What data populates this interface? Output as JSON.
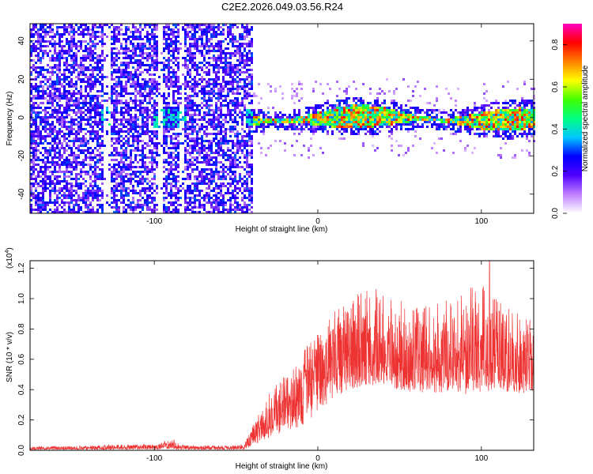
{
  "figure": {
    "title": "C2E2.2026.049.03.56.R24"
  },
  "chart_data": [
    {
      "type": "heatmap",
      "name": "spectrogram",
      "xlabel": "Height of straight line (km)",
      "ylabel": "Frequency (Hz)",
      "xlim": [
        -176,
        132
      ],
      "ylim": [
        -50,
        49
      ],
      "xticks": [
        -100,
        0,
        100
      ],
      "yticks": [
        -40,
        -20,
        0,
        20,
        40
      ],
      "colorbar": {
        "label": "Normalized spectral amplitude",
        "range": [
          0,
          0.9
        ],
        "ticks": [
          0.0,
          0.2,
          0.4,
          0.6,
          0.8
        ],
        "colormap": [
          "#ffffff",
          "#c080ff",
          "#5000ff",
          "#0000ff",
          "#00c8ff",
          "#00ff80",
          "#40ff00",
          "#ffff00",
          "#ff8000",
          "#ff0000",
          "#ff00c0"
        ]
      },
      "regions": [
        {
          "x_range": [
            -176,
            -41
          ],
          "description_freq_band": [
            -50,
            49
          ],
          "intensity": 0.05
        },
        {
          "x_range": [
            -133,
            -128
          ],
          "description_freq_band": [
            -4,
            6
          ],
          "intensity": 0.25
        },
        {
          "x_range": [
            -101,
            -81
          ],
          "description_freq_band": [
            -5,
            5
          ],
          "intensity": 0.3
        },
        {
          "x_range": [
            -45,
            132
          ],
          "description_freq_band": [
            -4,
            5
          ],
          "intensity": 0.6
        }
      ],
      "gaps_x": [
        [
          -132,
          -128
        ],
        [
          -99,
          -95
        ],
        [
          -85,
          -82
        ]
      ]
    },
    {
      "type": "line",
      "name": "snr",
      "xlabel": "Height of straight line (km)",
      "ylabel": "SNR (10 * v/v)",
      "y_multiplier": "(x10",
      "y_multiplier_exp": "4",
      "y_multiplier_close": ")",
      "xlim": [
        -176,
        132
      ],
      "ylim": [
        0,
        1.25
      ],
      "xticks": [
        -100,
        0,
        100
      ],
      "yticks": [
        0.0,
        0.2,
        0.4,
        0.6,
        0.8,
        1.0,
        1.2
      ],
      "ytick_labels": [
        "0.0",
        "0.2",
        "0.4",
        "0.6",
        "0.8",
        "1.0",
        "1.2"
      ],
      "color": "#ee3333",
      "envelope": {
        "x": [
          -176,
          -140,
          -130,
          -100,
          -88,
          -85,
          -60,
          -45,
          -38,
          -30,
          -20,
          -10,
          0,
          10,
          20,
          30,
          40,
          50,
          60,
          70,
          80,
          90,
          100,
          110,
          120,
          132
        ],
        "baseline": [
          0.003,
          0.004,
          0.005,
          0.006,
          0.008,
          0.005,
          0.004,
          0.005,
          0.04,
          0.08,
          0.12,
          0.16,
          0.25,
          0.35,
          0.4,
          0.42,
          0.42,
          0.4,
          0.38,
          0.38,
          0.38,
          0.37,
          0.38,
          0.4,
          0.38,
          0.37
        ],
        "mean": [
          0.012,
          0.014,
          0.018,
          0.02,
          0.03,
          0.018,
          0.015,
          0.018,
          0.12,
          0.2,
          0.3,
          0.4,
          0.5,
          0.58,
          0.62,
          0.62,
          0.6,
          0.58,
          0.55,
          0.55,
          0.57,
          0.6,
          0.6,
          0.58,
          0.55,
          0.56
        ],
        "peak": [
          0.025,
          0.03,
          0.04,
          0.04,
          0.08,
          0.04,
          0.03,
          0.04,
          0.22,
          0.38,
          0.5,
          0.65,
          0.78,
          0.92,
          1.0,
          1.08,
          1.05,
          1.0,
          0.95,
          0.95,
          1.0,
          1.08,
          1.1,
          1.0,
          0.95,
          0.85
        ]
      },
      "max_point": {
        "x": 105,
        "y": 1.25
      }
    }
  ]
}
